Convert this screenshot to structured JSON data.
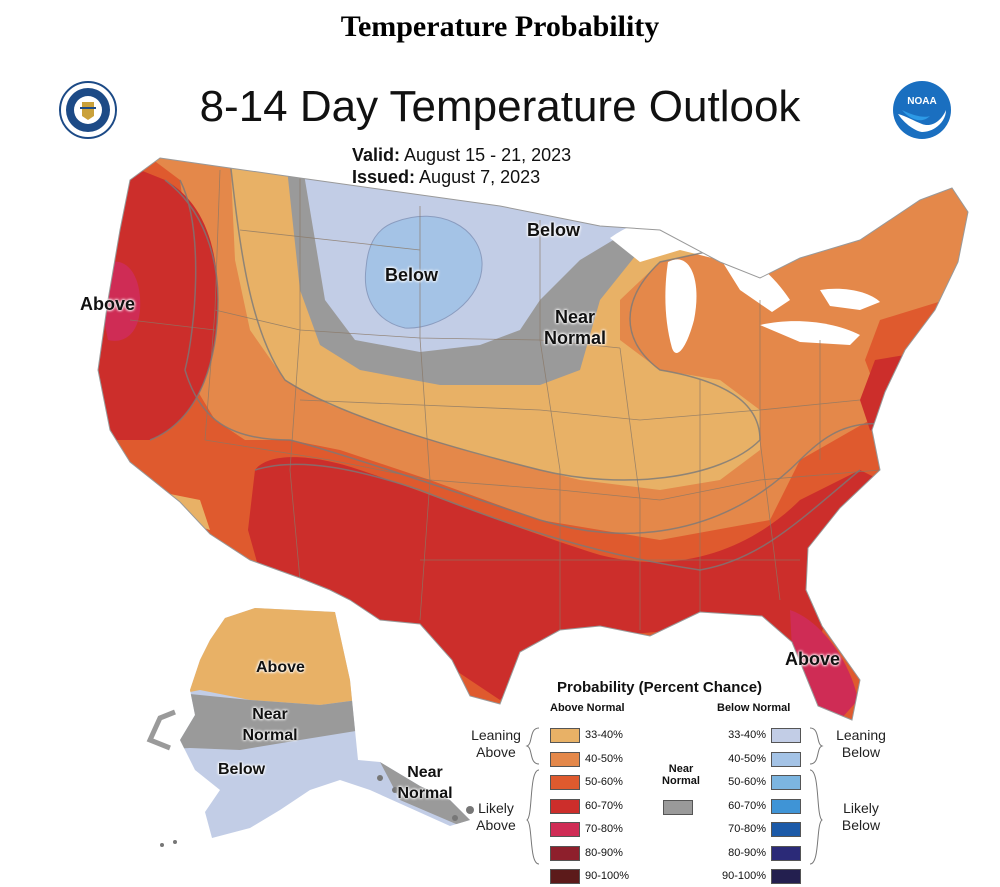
{
  "header": "Temperature Probability",
  "map": {
    "title": "8-14 Day Temperature Outlook",
    "valid_label": "Valid:",
    "valid_value": "August 15 - 21, 2023",
    "issued_label": "Issued:",
    "issued_value": "August 7, 2023",
    "labels": {
      "west_above": "Above",
      "north_below": "Below",
      "minnesota_below": "Below",
      "near_normal": "Near Normal",
      "florida_above": "Above",
      "alaska_above": "Above",
      "alaska_near_normal": "Near Normal",
      "alaska_below": "Below",
      "aleutian_near_normal": "Near Normal"
    }
  },
  "legend": {
    "title": "Probability (Percent Chance)",
    "above_header": "Above Normal",
    "below_header": "Below Normal",
    "near_header": "Near Normal",
    "leaning_above": "Leaning Above",
    "likely_above": "Likely Above",
    "leaning_below": "Leaning Below",
    "likely_below": "Likely Below",
    "above": [
      {
        "range": "33-40%",
        "color": "#e8b166"
      },
      {
        "range": "40-50%",
        "color": "#e4884a"
      },
      {
        "range": "50-60%",
        "color": "#df5a2e"
      },
      {
        "range": "60-70%",
        "color": "#cc2e2b"
      },
      {
        "range": "70-80%",
        "color": "#cf2c55"
      },
      {
        "range": "80-90%",
        "color": "#8e1f2c"
      },
      {
        "range": "90-100%",
        "color": "#5c1a1a"
      }
    ],
    "below": [
      {
        "range": "33-40%",
        "color": "#c2cde6"
      },
      {
        "range": "40-50%",
        "color": "#a4c3e6"
      },
      {
        "range": "50-60%",
        "color": "#7cb5e0"
      },
      {
        "range": "60-70%",
        "color": "#3f94d6"
      },
      {
        "range": "70-80%",
        "color": "#1c5aa8"
      },
      {
        "range": "80-90%",
        "color": "#2b2a78"
      },
      {
        "range": "90-100%",
        "color": "#231f4f"
      }
    ],
    "near_color": "#9a9a9a"
  },
  "colors": {
    "lake": "#ffffff",
    "border": "#8a7866"
  }
}
